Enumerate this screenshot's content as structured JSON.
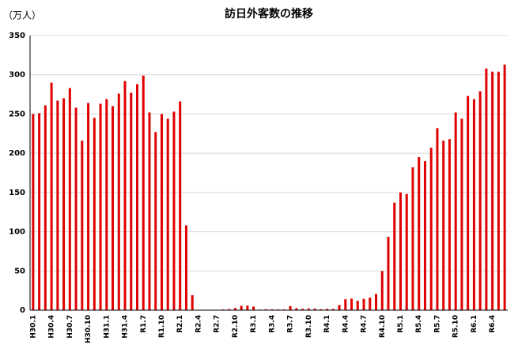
{
  "chart_data": {
    "type": "bar",
    "title": "訪日外客数の推移",
    "y_axis_label": "（万人）",
    "categories": [
      "H30.1",
      null,
      null,
      "H30.4",
      null,
      null,
      "H30.7",
      null,
      null,
      "H30.10",
      null,
      null,
      "H31.1",
      null,
      null,
      "H31.4",
      null,
      null,
      "R1.7",
      null,
      null,
      "R1.10",
      null,
      null,
      "R2.1",
      null,
      null,
      "R2.4",
      null,
      null,
      "R2.7",
      null,
      null,
      "R2.10",
      null,
      null,
      "R3.1",
      null,
      null,
      "R3.4",
      null,
      null,
      "R3.7",
      null,
      null,
      "R3.10",
      null,
      null,
      "R4.1",
      null,
      null,
      "R4.4",
      null,
      null,
      "R4.7",
      null,
      null,
      "R4.10",
      null,
      null,
      "R5.1",
      null,
      null,
      "R5.4",
      null,
      null,
      "R5.7",
      null,
      null,
      "R5.10",
      null,
      null,
      "R6.1",
      null,
      null,
      "R6.4",
      null,
      null
    ],
    "values": [
      250,
      251,
      261,
      290,
      267,
      270,
      283,
      258,
      216,
      264,
      245,
      263,
      269,
      260,
      276,
      292,
      277,
      288,
      299,
      252,
      227,
      250,
      244,
      253,
      266,
      108,
      19,
      0.3,
      0.2,
      0.3,
      0.4,
      0.9,
      1.4,
      2.8,
      5.6,
      5.9,
      4.6,
      0.7,
      1.2,
      1.1,
      1.0,
      1.0,
      5.2,
      2.6,
      1.8,
      2.2,
      2.1,
      1.2,
      1.7,
      1.7,
      6.6,
      13.9,
      14.7,
      12.0,
      14.4,
      16.0,
      20.7,
      49.9,
      93.5,
      137,
      150,
      148,
      182,
      195,
      190,
      207,
      232,
      216,
      218,
      252,
      244,
      273,
      269,
      279,
      308,
      304,
      304,
      313
    ],
    "color": "#e00000",
    "ylim": [
      0,
      350
    ],
    "yticks": [
      0,
      50,
      100,
      150,
      200,
      250,
      300,
      350
    ],
    "grid": true
  }
}
